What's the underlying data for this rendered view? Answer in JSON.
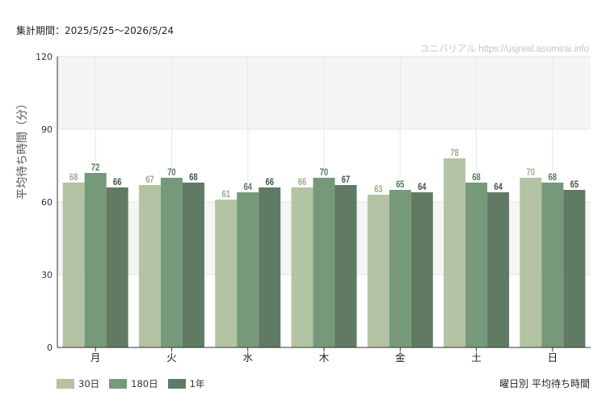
{
  "header": {
    "period_label": "集計期間：2025/5/25〜2026/5/24"
  },
  "chart_data": {
    "type": "bar",
    "title": "",
    "credit": "ユニバリアル https://usjreal.asumirai.info",
    "ylabel": "平均待ち時間（分）",
    "xlabel": "",
    "caption": "曜日別 平均待ち時間",
    "ylim": [
      0,
      120
    ],
    "yticks": [
      0,
      30,
      60,
      90,
      120
    ],
    "grid": true,
    "legend_position": "bottom-left",
    "categories": [
      "月",
      "火",
      "水",
      "木",
      "金",
      "土",
      "日"
    ],
    "series": [
      {
        "name": "30日",
        "color": "#b3c3a3",
        "label_color": "#9aab88",
        "values": [
          68,
          67,
          61,
          66,
          63,
          78,
          70
        ]
      },
      {
        "name": "180日",
        "color": "#76997a",
        "label_color": "#557a5b",
        "values": [
          72,
          70,
          64,
          70,
          65,
          68,
          68
        ]
      },
      {
        "name": "1年",
        "color": "#607a63",
        "label_color": "#3e5440",
        "values": [
          66,
          68,
          66,
          67,
          64,
          64,
          65
        ]
      }
    ]
  }
}
